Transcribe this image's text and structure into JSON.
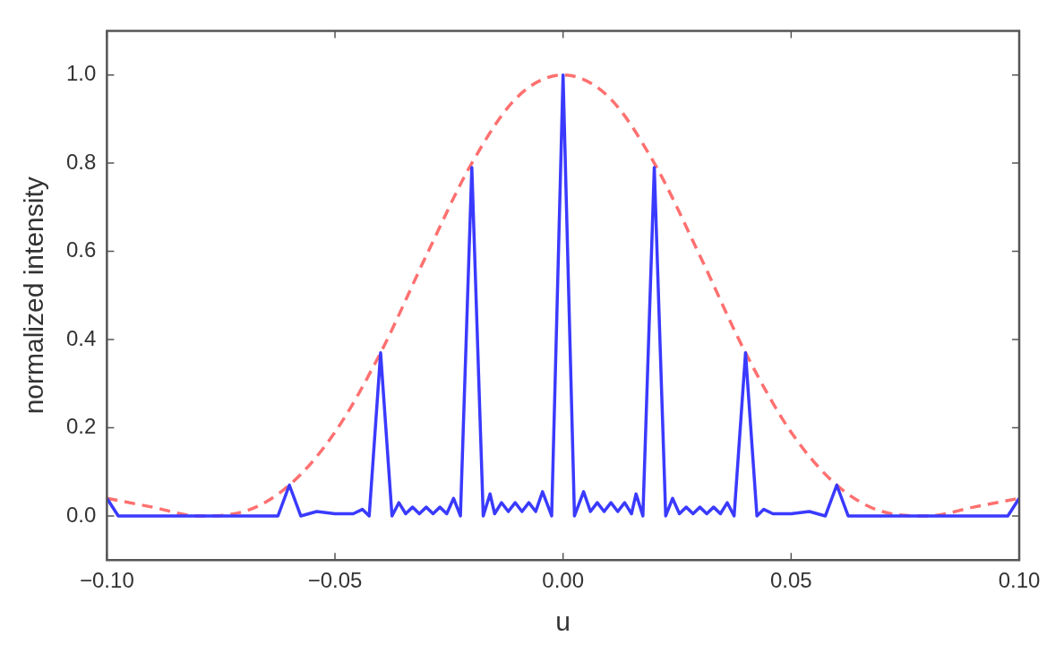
{
  "chart_data": {
    "type": "line",
    "xlabel": "u",
    "ylabel": "normalized intensity",
    "xlim": [
      -0.1,
      0.1
    ],
    "ylim": [
      -0.1,
      1.1
    ],
    "xticks": [
      {
        "value": -0.1,
        "label": "−0.10"
      },
      {
        "value": -0.05,
        "label": "−0.05"
      },
      {
        "value": 0,
        "label": "0.00"
      },
      {
        "value": 0.05,
        "label": "0.05"
      },
      {
        "value": 0.1,
        "label": "0.10"
      }
    ],
    "yticks": [
      {
        "value": 0,
        "label": "0.0"
      },
      {
        "value": 0.2,
        "label": "0.2"
      },
      {
        "value": 0.4,
        "label": "0.4"
      },
      {
        "value": 0.6,
        "label": "0.6"
      },
      {
        "value": 0.8,
        "label": "0.8"
      },
      {
        "value": 1,
        "label": "1.0"
      }
    ],
    "grid": false,
    "legend": false,
    "marker": "none",
    "series": [
      {
        "color": "#3a3aff",
        "line_style": "solid",
        "x": [
          -0.1,
          -0.0975,
          -0.0625,
          -0.06,
          -0.0575,
          -0.054,
          -0.05,
          -0.046,
          -0.044,
          -0.0425,
          -0.04,
          -0.0375,
          -0.036,
          -0.0345,
          -0.033,
          -0.0315,
          -0.03,
          -0.0285,
          -0.027,
          -0.0255,
          -0.024,
          -0.0225,
          -0.02,
          -0.0175,
          -0.016,
          -0.015,
          -0.0135,
          -0.012,
          -0.0105,
          -0.009,
          -0.0075,
          -0.006,
          -0.0045,
          -0.0025,
          0,
          0.0025,
          0.0045,
          0.006,
          0.0075,
          0.009,
          0.0105,
          0.012,
          0.0135,
          0.015,
          0.016,
          0.0175,
          0.02,
          0.0225,
          0.024,
          0.0255,
          0.027,
          0.0285,
          0.03,
          0.0315,
          0.033,
          0.0345,
          0.036,
          0.0375,
          0.04,
          0.0425,
          0.044,
          0.046,
          0.05,
          0.054,
          0.0575,
          0.06,
          0.0625,
          0.0975,
          0.1
        ],
        "values": [
          0.04,
          0,
          0,
          0.07,
          0,
          0.01,
          0.005,
          0.005,
          0.015,
          0,
          0.37,
          0,
          0.03,
          0.005,
          0.02,
          0.005,
          0.02,
          0.005,
          0.02,
          0.005,
          0.04,
          0,
          0.79,
          0,
          0.05,
          0.005,
          0.03,
          0.01,
          0.03,
          0.01,
          0.03,
          0.01,
          0.055,
          0,
          1.0,
          0,
          0.055,
          0.01,
          0.03,
          0.01,
          0.03,
          0.01,
          0.03,
          0.005,
          0.05,
          0,
          0.79,
          0,
          0.04,
          0.005,
          0.02,
          0.005,
          0.02,
          0.005,
          0.02,
          0.005,
          0.03,
          0,
          0.37,
          0,
          0.015,
          0.005,
          0.005,
          0.01,
          0,
          0.07,
          0,
          0,
          0.04
        ]
      },
      {
        "color": "#ff7070",
        "line_style": "dashed",
        "x": [
          -0.1,
          -0.09,
          -0.08,
          -0.07,
          -0.06,
          -0.05,
          -0.04,
          -0.03,
          -0.02,
          -0.01,
          0,
          0.01,
          0.02,
          0.03,
          0.04,
          0.05,
          0.06,
          0.07,
          0.08,
          0.09,
          0.1
        ],
        "values": [
          0.04,
          0.02,
          0,
          0.01,
          0.07,
          0.19,
          0.37,
          0.59,
          0.8,
          0.95,
          1.0,
          0.95,
          0.8,
          0.59,
          0.37,
          0.19,
          0.07,
          0.01,
          0,
          0.02,
          0.04
        ]
      }
    ]
  }
}
